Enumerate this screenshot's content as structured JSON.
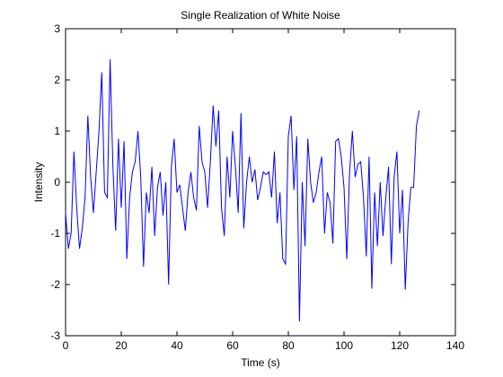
{
  "colors": {
    "background": "#ffffff",
    "axes": "#000000",
    "series": "#0000ff"
  },
  "chart_data": {
    "type": "line",
    "title": "Single Realization of White Noise",
    "xlabel": "Time (s)",
    "ylabel": "Intensity",
    "xlim": [
      0,
      140
    ],
    "ylim": [
      -3,
      3
    ],
    "xticks": [
      0,
      20,
      40,
      60,
      80,
      100,
      120,
      140
    ],
    "yticks": [
      -3,
      -2,
      -1,
      0,
      1,
      2,
      3
    ],
    "xtick_labels": [
      "0",
      "20",
      "40",
      "60",
      "80",
      "100",
      "120",
      "140"
    ],
    "ytick_labels": [
      "-3",
      "-2",
      "-1",
      "0",
      "1",
      "2",
      "3"
    ],
    "grid": false,
    "legend": "none",
    "series": [
      {
        "x": [
          0,
          1,
          2,
          3,
          4,
          5,
          6,
          7,
          8,
          9,
          10,
          11,
          12,
          13,
          14,
          15,
          16,
          17,
          18,
          19,
          20,
          21,
          22,
          23,
          24,
          25,
          26,
          27,
          28,
          29,
          30,
          31,
          32,
          33,
          34,
          35,
          36,
          37,
          38,
          39,
          40,
          41,
          42,
          43,
          44,
          45,
          46,
          47,
          48,
          49,
          50,
          51,
          52,
          53,
          54,
          55,
          56,
          57,
          58,
          59,
          60,
          61,
          62,
          63,
          64,
          65,
          66,
          67,
          68,
          69,
          70,
          71,
          72,
          73,
          74,
          75,
          76,
          77,
          78,
          79,
          80,
          81,
          82,
          83,
          84,
          85,
          86,
          87,
          88,
          89,
          90,
          91,
          92,
          93,
          94,
          95,
          96,
          97,
          98,
          99,
          100,
          101,
          102,
          103,
          104,
          105,
          106,
          107,
          108,
          109,
          110,
          111,
          112,
          113,
          114,
          115,
          116,
          117,
          118,
          119,
          120,
          121,
          122,
          123,
          124,
          125,
          126,
          127
        ],
        "y": [
          -0.6,
          -1.3,
          -1.0,
          0.6,
          -0.5,
          -1.3,
          -0.9,
          -0.3,
          1.3,
          0.1,
          -0.6,
          0.2,
          1.0,
          2.15,
          -0.2,
          -0.3,
          2.4,
          0.3,
          -0.95,
          0.85,
          -0.5,
          0.8,
          -1.5,
          -0.3,
          0.2,
          0.4,
          1.0,
          0.1,
          -1.65,
          -0.2,
          -0.6,
          0.3,
          -1.05,
          -0.1,
          0.2,
          -0.65,
          0.0,
          -2.0,
          0.3,
          0.85,
          -0.2,
          -0.05,
          -0.5,
          -0.95,
          -0.2,
          0.2,
          -0.3,
          -0.55,
          1.1,
          0.4,
          0.2,
          -0.5,
          0.4,
          1.5,
          0.7,
          1.4,
          -0.5,
          -1.05,
          0.5,
          -0.3,
          1.0,
          0.3,
          -0.6,
          1.35,
          -0.9,
          0.0,
          0.5,
          0.0,
          0.25,
          -0.35,
          -0.1,
          0.2,
          0.15,
          0.2,
          -0.3,
          0.6,
          -0.8,
          -0.2,
          -1.5,
          -1.6,
          0.9,
          1.3,
          -0.15,
          0.9,
          -2.72,
          0.0,
          -1.25,
          0.85,
          0.0,
          -0.4,
          -0.2,
          0.2,
          0.5,
          -1.0,
          -0.2,
          -0.4,
          -1.2,
          0.8,
          0.85,
          0.5,
          -0.1,
          -1.5,
          0.2,
          1.0,
          0.1,
          0.35,
          0.4,
          -0.3,
          -1.45,
          0.5,
          -2.08,
          -0.2,
          -1.25,
          0.0,
          -1.05,
          -0.3,
          0.3,
          -1.6,
          0.1,
          0.6,
          -1.0,
          -0.15,
          -2.1,
          -0.8,
          -0.1,
          -0.1,
          1.1,
          1.4
        ]
      }
    ]
  }
}
